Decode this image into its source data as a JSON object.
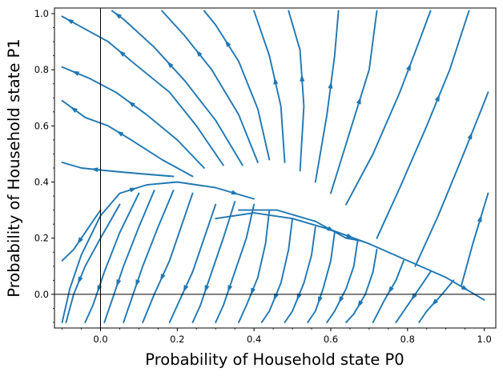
{
  "chart_data": {
    "type": "streamplot",
    "title": "",
    "xlabel": "Probability of Household state P0",
    "ylabel": "Probability of Household state P1",
    "xlim": [
      -0.12,
      1.03
    ],
    "ylim": [
      -0.12,
      1.02
    ],
    "xticks": [
      "0.0",
      "0.2",
      "0.4",
      "0.6",
      "0.8",
      "1.0"
    ],
    "yticks": [
      "0.0",
      "0.2",
      "0.4",
      "0.6",
      "0.8",
      "1.0"
    ],
    "grid": false,
    "reference_lines": {
      "x": 0.0,
      "y": 0.0
    },
    "series_color": "#1f77b4",
    "description_points": {
      "saddle_region": [
        0.38,
        0.36
      ],
      "upper_separatrix": [
        [
          -0.1,
          0.46
        ],
        [
          0.0,
          0.43
        ],
        [
          0.14,
          0.42
        ],
        [
          0.2,
          0.41
        ]
      ],
      "lower_separatrix": [
        [
          0.3,
          0.27
        ],
        [
          0.45,
          0.28
        ],
        [
          0.55,
          0.26
        ],
        [
          0.75,
          0.16
        ],
        [
          0.96,
          0.04
        ],
        [
          1.0,
          -0.02
        ]
      ]
    },
    "streamlines": [
      [
        [
          0.19,
          0.42
        ],
        [
          0.1,
          0.43
        ],
        [
          0.02,
          0.44
        ],
        [
          -0.05,
          0.45
        ],
        [
          -0.1,
          0.47
        ]
      ],
      [
        [
          0.24,
          0.42
        ],
        [
          0.16,
          0.48
        ],
        [
          0.08,
          0.55
        ],
        [
          0.02,
          0.6
        ],
        [
          -0.04,
          0.63
        ],
        [
          -0.1,
          0.69
        ]
      ],
      [
        [
          0.27,
          0.45
        ],
        [
          0.2,
          0.55
        ],
        [
          0.12,
          0.64
        ],
        [
          0.04,
          0.72
        ],
        [
          -0.03,
          0.77
        ],
        [
          -0.1,
          0.81
        ]
      ],
      [
        [
          0.32,
          0.46
        ],
        [
          0.25,
          0.6
        ],
        [
          0.18,
          0.72
        ],
        [
          0.09,
          0.82
        ],
        [
          0.02,
          0.9
        ],
        [
          -0.06,
          0.96
        ],
        [
          -0.1,
          0.99
        ]
      ],
      [
        [
          0.37,
          0.46
        ],
        [
          0.3,
          0.62
        ],
        [
          0.22,
          0.76
        ],
        [
          0.14,
          0.88
        ],
        [
          0.06,
          0.98
        ],
        [
          0.03,
          1.01
        ]
      ],
      [
        [
          0.41,
          0.47
        ],
        [
          0.36,
          0.64
        ],
        [
          0.29,
          0.8
        ],
        [
          0.22,
          0.92
        ],
        [
          0.16,
          1.01
        ]
      ],
      [
        [
          0.44,
          0.48
        ],
        [
          0.41,
          0.66
        ],
        [
          0.36,
          0.83
        ],
        [
          0.3,
          0.96
        ],
        [
          0.27,
          1.01
        ]
      ],
      [
        [
          0.48,
          0.47
        ],
        [
          0.47,
          0.67
        ],
        [
          0.44,
          0.85
        ],
        [
          0.4,
          1.01
        ]
      ],
      [
        [
          0.52,
          0.44
        ],
        [
          0.53,
          0.67
        ],
        [
          0.52,
          0.87
        ],
        [
          0.49,
          1.01
        ]
      ],
      [
        [
          0.56,
          0.4
        ],
        [
          0.59,
          0.64
        ],
        [
          0.61,
          0.85
        ],
        [
          0.62,
          1.01
        ]
      ],
      [
        [
          0.6,
          0.36
        ],
        [
          0.65,
          0.58
        ],
        [
          0.7,
          0.8
        ],
        [
          0.72,
          1.01
        ]
      ],
      [
        [
          0.64,
          0.32
        ],
        [
          0.71,
          0.5
        ],
        [
          0.78,
          0.72
        ],
        [
          0.83,
          0.9
        ],
        [
          0.86,
          1.01
        ]
      ],
      [
        [
          0.72,
          0.2
        ],
        [
          0.78,
          0.38
        ],
        [
          0.85,
          0.6
        ],
        [
          0.91,
          0.8
        ],
        [
          0.96,
          1.01
        ]
      ],
      [
        [
          0.82,
          0.1
        ],
        [
          0.88,
          0.28
        ],
        [
          0.94,
          0.48
        ],
        [
          0.99,
          0.65
        ],
        [
          1.01,
          0.72
        ]
      ],
      [
        [
          0.94,
          0.03
        ],
        [
          0.97,
          0.18
        ],
        [
          1.01,
          0.36
        ]
      ],
      [
        [
          0.0,
          0.3
        ],
        [
          -0.04,
          0.22
        ],
        [
          -0.07,
          0.16
        ],
        [
          -0.1,
          0.12
        ]
      ],
      [
        [
          0.05,
          0.32
        ],
        [
          0.0,
          0.2
        ],
        [
          -0.04,
          0.1
        ],
        [
          -0.07,
          0.0
        ],
        [
          -0.09,
          -0.1
        ]
      ],
      [
        [
          0.1,
          0.36
        ],
        [
          0.05,
          0.22
        ],
        [
          0.01,
          0.08
        ],
        [
          -0.02,
          -0.04
        ],
        [
          -0.04,
          -0.1
        ]
      ],
      [
        [
          0.14,
          0.37
        ],
        [
          0.1,
          0.24
        ],
        [
          0.06,
          0.1
        ],
        [
          0.03,
          -0.02
        ],
        [
          0.01,
          -0.1
        ]
      ],
      [
        [
          0.19,
          0.37
        ],
        [
          0.15,
          0.24
        ],
        [
          0.11,
          0.1
        ],
        [
          0.08,
          -0.02
        ],
        [
          0.06,
          -0.1
        ]
      ],
      [
        [
          0.24,
          0.36
        ],
        [
          0.21,
          0.24
        ],
        [
          0.18,
          0.12
        ],
        [
          0.14,
          0.0
        ],
        [
          0.11,
          -0.1
        ]
      ],
      [
        [
          0.3,
          0.32
        ],
        [
          0.27,
          0.2
        ],
        [
          0.24,
          0.08
        ],
        [
          0.2,
          -0.04
        ],
        [
          0.18,
          -0.1
        ]
      ],
      [
        [
          0.35,
          0.33
        ],
        [
          0.32,
          0.2
        ],
        [
          0.29,
          0.08
        ],
        [
          0.26,
          -0.04
        ],
        [
          0.24,
          -0.1
        ]
      ],
      [
        [
          0.4,
          0.32
        ],
        [
          0.38,
          0.2
        ],
        [
          0.35,
          0.08
        ],
        [
          0.32,
          -0.04
        ],
        [
          0.3,
          -0.1
        ]
      ],
      [
        [
          0.44,
          0.3
        ],
        [
          0.43,
          0.18
        ],
        [
          0.41,
          0.06
        ],
        [
          0.38,
          -0.04
        ],
        [
          0.36,
          -0.1
        ]
      ],
      [
        [
          0.5,
          0.27
        ],
        [
          0.49,
          0.16
        ],
        [
          0.47,
          0.04
        ],
        [
          0.44,
          -0.06
        ],
        [
          0.42,
          -0.1
        ]
      ],
      [
        [
          0.56,
          0.24
        ],
        [
          0.55,
          0.14
        ],
        [
          0.53,
          0.04
        ],
        [
          0.5,
          -0.06
        ],
        [
          0.48,
          -0.1
        ]
      ],
      [
        [
          0.61,
          0.22
        ],
        [
          0.6,
          0.12
        ],
        [
          0.58,
          0.02
        ],
        [
          0.56,
          -0.06
        ],
        [
          0.54,
          -0.1
        ]
      ],
      [
        [
          0.67,
          0.19
        ],
        [
          0.66,
          0.1
        ],
        [
          0.64,
          0.02
        ],
        [
          0.61,
          -0.06
        ],
        [
          0.59,
          -0.1
        ]
      ],
      [
        [
          0.72,
          0.16
        ],
        [
          0.71,
          0.08
        ],
        [
          0.69,
          0.0
        ],
        [
          0.66,
          -0.07
        ],
        [
          0.64,
          -0.1
        ]
      ],
      [
        [
          0.79,
          0.12
        ],
        [
          0.77,
          0.05
        ],
        [
          0.74,
          -0.02
        ],
        [
          0.71,
          -0.1
        ]
      ],
      [
        [
          0.86,
          0.08
        ],
        [
          0.83,
          0.02
        ],
        [
          0.8,
          -0.04
        ],
        [
          0.77,
          -0.1
        ]
      ],
      [
        [
          0.92,
          0.05
        ],
        [
          0.89,
          0.0
        ],
        [
          0.85,
          -0.06
        ],
        [
          0.83,
          -0.1
        ]
      ],
      [
        [
          -0.1,
          -0.1
        ],
        [
          -0.08,
          0.02
        ],
        [
          -0.05,
          0.14
        ],
        [
          0.0,
          0.28
        ],
        [
          0.05,
          0.36
        ],
        [
          0.12,
          0.39
        ],
        [
          0.2,
          0.4
        ],
        [
          0.3,
          0.38
        ],
        [
          0.4,
          0.34
        ]
      ],
      [
        [
          0.3,
          0.27
        ],
        [
          0.4,
          0.29
        ],
        [
          0.5,
          0.27
        ],
        [
          0.6,
          0.23
        ],
        [
          0.7,
          0.18
        ],
        [
          0.8,
          0.12
        ],
        [
          0.9,
          0.06
        ],
        [
          1.0,
          -0.02
        ]
      ],
      [
        [
          0.36,
          0.3
        ],
        [
          0.46,
          0.3
        ],
        [
          0.56,
          0.26
        ],
        [
          0.64,
          0.2
        ],
        [
          0.68,
          0.19
        ]
      ]
    ]
  }
}
